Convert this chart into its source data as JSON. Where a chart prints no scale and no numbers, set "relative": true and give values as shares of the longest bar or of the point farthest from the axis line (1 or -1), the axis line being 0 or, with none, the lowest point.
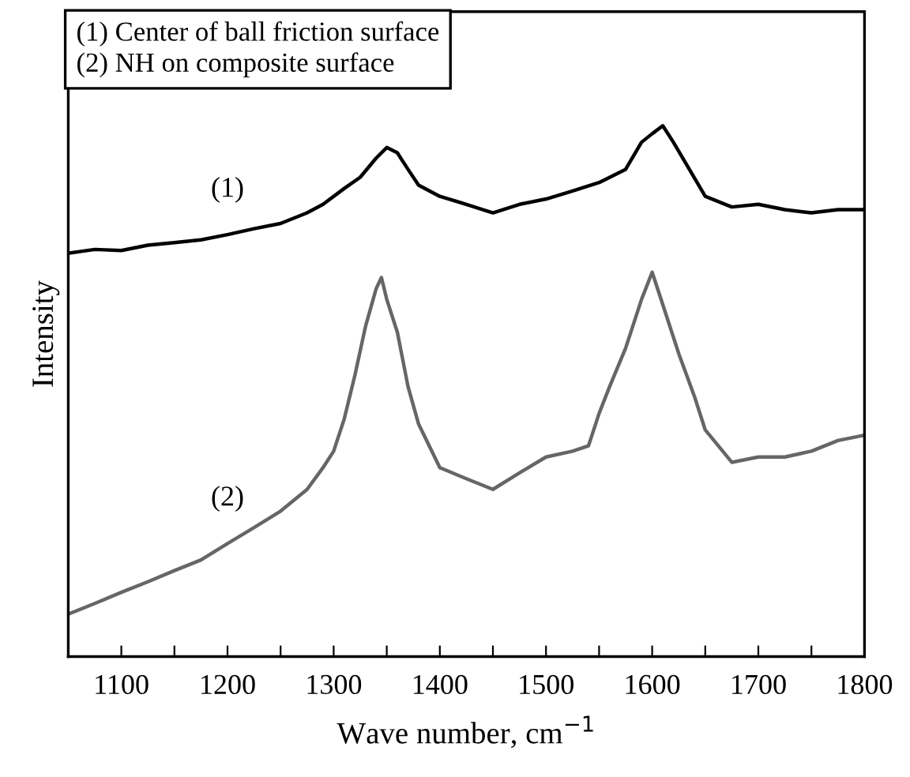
{
  "chart_data": {
    "type": "line",
    "relative": true,
    "xlabel": "Wave number, cm$^{−1}$",
    "ylabel": "Intensity",
    "annotations": [
      "(1) Center of ball friction surface",
      "(2) NH on composite surface"
    ],
    "xlim": [
      1050,
      1800
    ],
    "xticks": [
      1100,
      {
        "value": 1150,
        "label": null
      },
      1200,
      {
        "value": 1250,
        "label": null
      },
      1300,
      {
        "value": 1350,
        "label": null
      },
      1400,
      {
        "value": 1450,
        "label": null
      },
      1500,
      {
        "value": 1550,
        "label": null
      },
      1600,
      {
        "value": 1650,
        "label": null
      },
      1700,
      {
        "value": 1750,
        "label": null
      },
      1800
    ],
    "legend": false,
    "grid": false,
    "marker": "none",
    "line_style": "solid",
    "series": [
      {
        "name": "(1)",
        "color": "#000000",
        "x": [
          1050,
          1075,
          1100,
          1125,
          1150,
          1175,
          1200,
          1225,
          1250,
          1275,
          1290,
          1310,
          1325,
          1340,
          1350,
          1360,
          1370,
          1380,
          1400,
          1425,
          1450,
          1475,
          1500,
          1525,
          1550,
          1575,
          1590,
          1600,
          1610,
          1620,
          1635,
          1650,
          1675,
          1700,
          1725,
          1750,
          1775,
          1800
        ],
        "values": [
          0.76,
          0.767,
          0.765,
          0.775,
          0.78,
          0.785,
          0.795,
          0.806,
          0.816,
          0.836,
          0.852,
          0.882,
          0.903,
          0.939,
          0.959,
          0.949,
          0.918,
          0.888,
          0.867,
          0.852,
          0.836,
          0.852,
          0.862,
          0.877,
          0.893,
          0.918,
          0.969,
          0.985,
          1.0,
          0.969,
          0.918,
          0.867,
          0.847,
          0.852,
          0.842,
          0.836,
          0.842,
          0.842
        ]
      },
      {
        "name": "(2)",
        "color": "#666666",
        "x": [
          1050,
          1075,
          1100,
          1125,
          1150,
          1175,
          1200,
          1225,
          1250,
          1275,
          1290,
          1300,
          1310,
          1320,
          1330,
          1340,
          1345,
          1350,
          1360,
          1370,
          1380,
          1400,
          1425,
          1450,
          1475,
          1500,
          1525,
          1540,
          1550,
          1560,
          1575,
          1590,
          1600,
          1610,
          1625,
          1640,
          1650,
          1675,
          1700,
          1725,
          1750,
          1775,
          1800
        ],
        "values": [
          0.08,
          0.1,
          0.121,
          0.141,
          0.162,
          0.182,
          0.213,
          0.243,
          0.274,
          0.315,
          0.356,
          0.387,
          0.448,
          0.53,
          0.622,
          0.693,
          0.714,
          0.673,
          0.611,
          0.509,
          0.438,
          0.356,
          0.335,
          0.315,
          0.346,
          0.376,
          0.387,
          0.397,
          0.458,
          0.509,
          0.581,
          0.673,
          0.724,
          0.663,
          0.571,
          0.489,
          0.427,
          0.366,
          0.376,
          0.376,
          0.387,
          0.407,
          0.417
        ]
      }
    ]
  }
}
